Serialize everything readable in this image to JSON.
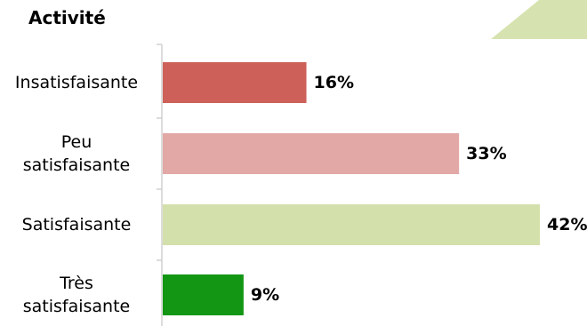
{
  "chart_data": {
    "type": "bar",
    "orientation": "horizontal",
    "title": "Activité",
    "categories": [
      [
        "Insatisfaisante"
      ],
      [
        "Peu",
        "satisfaisante"
      ],
      [
        "Satisfaisante"
      ],
      [
        "Très",
        "satisfaisante"
      ]
    ],
    "values": [
      16,
      33,
      42,
      9
    ],
    "value_labels": [
      "16%",
      "33%",
      "42%",
      "9%"
    ],
    "colors": [
      "#cd615a",
      "#e2a8a5",
      "#d3e0ac",
      "#129614"
    ],
    "xlim": [
      0,
      42
    ],
    "grid": false,
    "legend": "none"
  },
  "decoration": {
    "corner_color": "#d6e3b0"
  }
}
